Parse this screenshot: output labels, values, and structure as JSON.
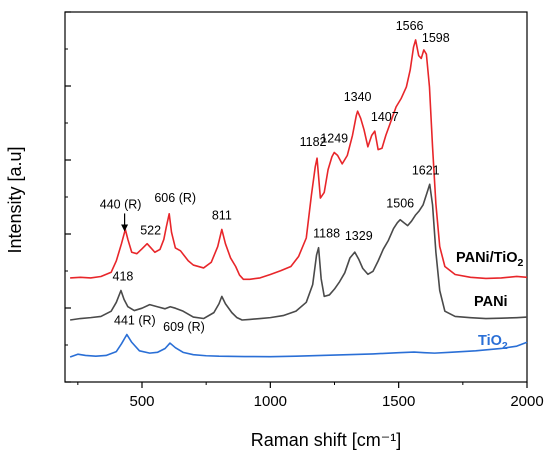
{
  "chart_data": {
    "type": "line",
    "title": "",
    "xlabel": "Raman shift [cm⁻¹]",
    "ylabel": "Intensity [a.u]",
    "xlim": [
      200,
      2000
    ],
    "x_ticks": [
      500,
      1000,
      1500,
      2000
    ],
    "y_ticks_labeled": false,
    "grid": false,
    "series": [
      {
        "name": "PANi/TiO₂",
        "label_main": "PANi/TiO",
        "label_sub": "2",
        "color": "#e8262a",
        "x": [
          220,
          260,
          300,
          340,
          380,
          400,
          420,
          435,
          445,
          460,
          480,
          500,
          520,
          535,
          550,
          570,
          585,
          595,
          606,
          615,
          630,
          650,
          680,
          700,
          740,
          770,
          795,
          811,
          825,
          845,
          865,
          880,
          895,
          920,
          960,
          1000,
          1040,
          1080,
          1110,
          1140,
          1160,
          1175,
          1182,
          1195,
          1210,
          1225,
          1240,
          1249,
          1262,
          1280,
          1300,
          1320,
          1335,
          1340,
          1352,
          1365,
          1380,
          1395,
          1407,
          1420,
          1435,
          1450,
          1470,
          1490,
          1510,
          1530,
          1545,
          1558,
          1566,
          1578,
          1588,
          1598,
          1608,
          1620,
          1632,
          1645,
          1660,
          1680,
          1720,
          1780,
          1840,
          1900,
          1960,
          2000
        ],
        "y": [
          0.6,
          0.62,
          0.6,
          0.65,
          0.8,
          1.2,
          1.8,
          2.3,
          1.95,
          1.5,
          1.45,
          1.62,
          1.8,
          1.65,
          1.5,
          1.6,
          1.95,
          2.4,
          2.85,
          2.2,
          1.65,
          1.55,
          1.2,
          1.05,
          0.95,
          1.15,
          1.7,
          2.3,
          1.8,
          1.3,
          1.0,
          0.7,
          0.55,
          0.55,
          0.6,
          0.72,
          0.85,
          1.0,
          1.35,
          2.0,
          3.5,
          4.5,
          4.8,
          3.4,
          3.6,
          4.4,
          4.85,
          5.0,
          4.9,
          4.6,
          4.9,
          5.6,
          6.3,
          6.45,
          6.2,
          5.8,
          5.2,
          5.6,
          5.75,
          5.1,
          5.15,
          5.6,
          6.1,
          6.6,
          6.9,
          7.3,
          7.9,
          8.7,
          8.95,
          8.4,
          8.3,
          8.6,
          8.45,
          7.3,
          5.2,
          3.2,
          1.7,
          1.0,
          0.72,
          0.62,
          0.58,
          0.6,
          0.65,
          0.62
        ]
      },
      {
        "name": "PANi",
        "color": "#4a4a4a",
        "x": [
          220,
          260,
          300,
          340,
          380,
          400,
          418,
          430,
          445,
          470,
          500,
          530,
          560,
          590,
          610,
          630,
          660,
          700,
          740,
          780,
          800,
          811,
          825,
          850,
          870,
          890,
          920,
          960,
          1000,
          1050,
          1100,
          1140,
          1165,
          1180,
          1188,
          1198,
          1210,
          1230,
          1250,
          1270,
          1290,
          1310,
          1329,
          1345,
          1360,
          1380,
          1400,
          1420,
          1440,
          1460,
          1480,
          1495,
          1506,
          1520,
          1535,
          1550,
          1565,
          1580,
          1595,
          1610,
          1621,
          1632,
          1645,
          1660,
          1680,
          1720,
          1780,
          1840,
          1900,
          1960,
          2000
        ],
        "y": [
          0.0,
          0.05,
          0.08,
          0.12,
          0.3,
          0.6,
          1.0,
          0.7,
          0.45,
          0.32,
          0.4,
          0.52,
          0.45,
          0.38,
          0.45,
          0.4,
          0.3,
          0.1,
          0.05,
          0.25,
          0.55,
          0.8,
          0.55,
          0.25,
          0.08,
          0.0,
          0.02,
          0.05,
          0.08,
          0.15,
          0.3,
          0.6,
          1.2,
          2.2,
          2.45,
          1.4,
          0.8,
          0.85,
          1.05,
          1.3,
          1.6,
          2.1,
          2.3,
          2.05,
          1.75,
          1.55,
          1.65,
          2.0,
          2.4,
          2.7,
          3.1,
          3.3,
          3.4,
          3.3,
          3.2,
          3.35,
          3.55,
          3.7,
          3.9,
          4.3,
          4.6,
          3.9,
          2.3,
          1.0,
          0.3,
          0.12,
          0.08,
          0.05,
          0.06,
          0.08,
          0.1
        ]
      },
      {
        "name": "TiO₂",
        "label_main": "TiO",
        "label_sub": "2",
        "color": "#2a6fd6",
        "x": [
          220,
          250,
          280,
          320,
          360,
          400,
          420,
          441,
          460,
          490,
          530,
          560,
          590,
          609,
          630,
          660,
          700,
          750,
          800,
          900,
          1000,
          1100,
          1200,
          1300,
          1400,
          1500,
          1560,
          1600,
          1640,
          1700,
          1800,
          1900,
          1960,
          2000
        ],
        "y": [
          0.0,
          0.18,
          0.1,
          0.05,
          0.1,
          0.35,
          0.85,
          1.45,
          0.95,
          0.4,
          0.25,
          0.3,
          0.55,
          0.9,
          0.6,
          0.3,
          0.15,
          0.08,
          0.05,
          0.03,
          0.02,
          0.05,
          0.1,
          0.15,
          0.2,
          0.28,
          0.32,
          0.28,
          0.25,
          0.3,
          0.4,
          0.55,
          0.7,
          0.95
        ]
      }
    ],
    "annotations": [
      {
        "text": "440",
        "suffix": " (R)",
        "x": 440,
        "series": "PANi/TiO₂",
        "arrow": true
      },
      {
        "text": "522",
        "x": 522,
        "series": "PANi/TiO₂"
      },
      {
        "text": "606",
        "suffix": " (R)",
        "x": 606,
        "series": "PANi/TiO₂"
      },
      {
        "text": "811",
        "x": 811,
        "series": "PANi/TiO₂"
      },
      {
        "text": "1182",
        "x": 1182,
        "series": "PANi/TiO₂"
      },
      {
        "text": "1249",
        "x": 1249,
        "series": "PANi/TiO₂"
      },
      {
        "text": "1340",
        "x": 1340,
        "series": "PANi/TiO₂"
      },
      {
        "text": "1407",
        "x": 1407,
        "series": "PANi/TiO₂"
      },
      {
        "text": "1566",
        "x": 1566,
        "series": "PANi/TiO₂"
      },
      {
        "text": "1598",
        "x": 1598,
        "series": "PANi/TiO₂"
      },
      {
        "text": "418",
        "x": 418,
        "series": "PANi"
      },
      {
        "text": "1188",
        "x": 1188,
        "series": "PANi"
      },
      {
        "text": "1329",
        "x": 1329,
        "series": "PANi"
      },
      {
        "text": "1506",
        "x": 1506,
        "series": "PANi"
      },
      {
        "text": "1621",
        "x": 1621,
        "series": "PANi"
      },
      {
        "text": "441",
        "suffix": " (R)",
        "x": 441,
        "series": "TiO₂"
      },
      {
        "text": "609",
        "suffix": " (R)",
        "x": 609,
        "series": "TiO₂"
      }
    ]
  }
}
